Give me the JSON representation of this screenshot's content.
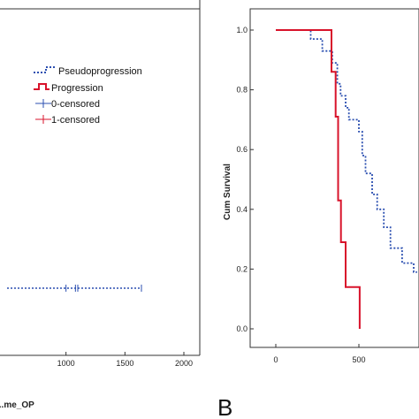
{
  "chart_data": [
    {
      "type": "line",
      "panel": "left (cropped)",
      "xlabel": "...me_OP",
      "x_ticks": [
        "1000",
        "1500",
        "2000"
      ],
      "xlim": [
        500,
        2000
      ],
      "legend": {
        "placement": "top-right",
        "entries": [
          "Pseudoprogression",
          "Progression",
          "0-censored",
          "1-censored"
        ]
      },
      "series": [
        {
          "name": "Pseudoprogression",
          "x": [
            500,
            1640
          ],
          "y": [
            0,
            0
          ],
          "censored_x": [
            1000,
            1080,
            1100,
            1640
          ],
          "color": "#2b4fb0",
          "style": "dotted"
        }
      ]
    },
    {
      "type": "line",
      "panel": "B",
      "ylabel": "Cum Survival",
      "x_ticks": [
        "0",
        "500"
      ],
      "y_ticks": [
        "0.0",
        "0.2",
        "0.4",
        "0.6",
        "0.8",
        "1.0"
      ],
      "xlim": [
        0,
        850
      ],
      "ylim": [
        0,
        1
      ],
      "series": [
        {
          "name": "Pseudoprogression",
          "color": "#2b4fb0",
          "style": "dotted",
          "x": [
            0,
            210,
            210,
            280,
            280,
            340,
            340,
            370,
            370,
            390,
            390,
            420,
            420,
            440,
            440,
            500,
            500,
            520,
            520,
            540,
            540,
            580,
            580,
            610,
            610,
            650,
            650,
            690,
            690,
            760,
            760,
            830,
            830,
            850
          ],
          "y": [
            1.0,
            1.0,
            0.97,
            0.97,
            0.93,
            0.93,
            0.89,
            0.89,
            0.82,
            0.82,
            0.78,
            0.78,
            0.74,
            0.74,
            0.7,
            0.7,
            0.66,
            0.66,
            0.58,
            0.58,
            0.52,
            0.52,
            0.45,
            0.45,
            0.4,
            0.4,
            0.34,
            0.34,
            0.27,
            0.27,
            0.22,
            0.22,
            0.19,
            0.19
          ]
        },
        {
          "name": "Progression",
          "color": "#d8132b",
          "style": "solid",
          "x": [
            0,
            335,
            335,
            360,
            360,
            375,
            375,
            392,
            392,
            420,
            420,
            465,
            465,
            505,
            505
          ],
          "y": [
            1.0,
            1.0,
            0.86,
            0.86,
            0.71,
            0.71,
            0.43,
            0.43,
            0.29,
            0.29,
            0.14,
            0.14,
            0.14,
            0.14,
            0.0
          ]
        }
      ]
    }
  ],
  "panel_letter_b": "B"
}
